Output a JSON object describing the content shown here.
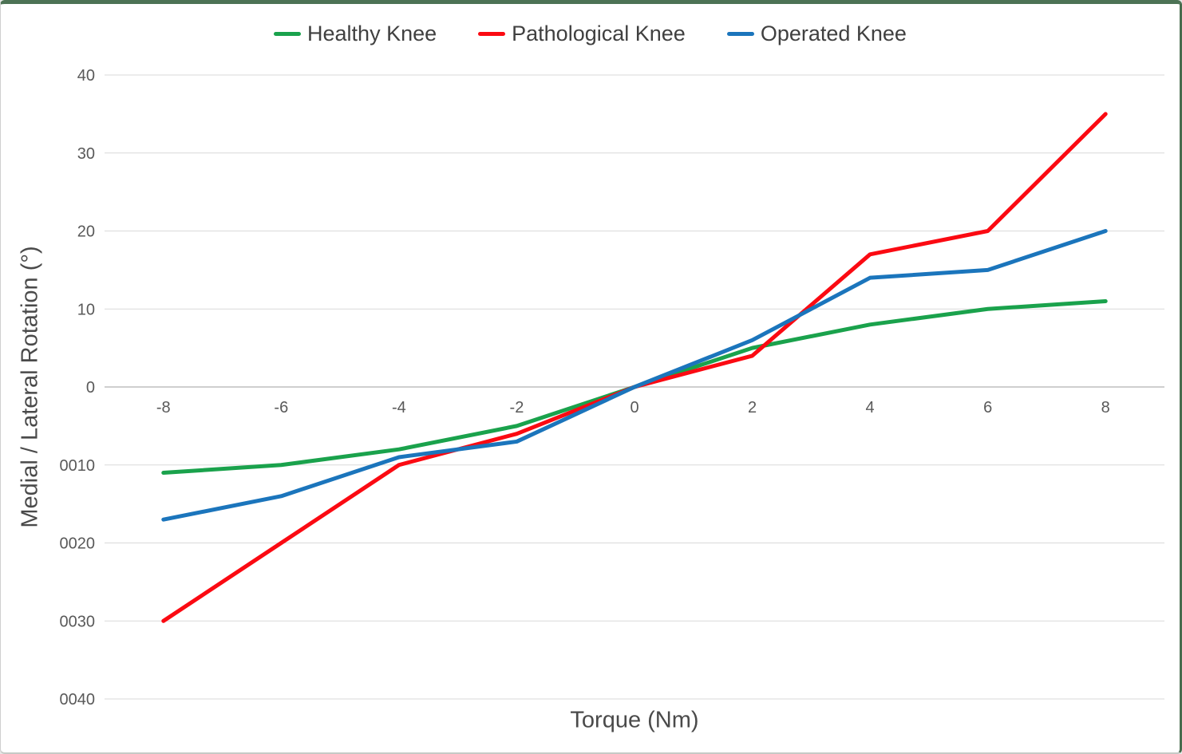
{
  "window": {
    "background": "#ffffff",
    "border_color": "#4d7355"
  },
  "legend": {
    "position": "top-center",
    "items": [
      {
        "label": "Healthy Knee",
        "color": "#1aa24c"
      },
      {
        "label": "Pathological Knee",
        "color": "#fb0a12"
      },
      {
        "label": "Operated Knee",
        "color": "#1b75bc"
      }
    ]
  },
  "chart_data": {
    "type": "line",
    "title": "",
    "xlabel": "Torque (Nm)",
    "ylabel": "Medial / Lateral Rotation (°)",
    "x": [
      -8,
      -6,
      -4,
      -2,
      0,
      2,
      4,
      6,
      8
    ],
    "series": [
      {
        "name": "Healthy Knee",
        "color": "#1aa24c",
        "values": [
          -11,
          -10,
          -8,
          -5,
          0,
          5,
          8,
          10,
          11
        ]
      },
      {
        "name": "Pathological Knee",
        "color": "#fb0a12",
        "values": [
          -30,
          -20,
          -10,
          -6,
          0,
          4,
          17,
          20,
          35
        ]
      },
      {
        "name": "Operated Knee",
        "color": "#1b75bc",
        "values": [
          -17,
          -14,
          -9,
          -7,
          0,
          6,
          14,
          15,
          20
        ]
      }
    ],
    "xlim": [
      -9,
      9
    ],
    "ylim": [
      -40,
      40
    ],
    "x_ticks": [
      {
        "value": -8,
        "label": "-8"
      },
      {
        "value": -6,
        "label": "-6"
      },
      {
        "value": -4,
        "label": "-4"
      },
      {
        "value": -2,
        "label": "-2"
      },
      {
        "value": 0,
        "label": "0"
      },
      {
        "value": 2,
        "label": "2"
      },
      {
        "value": 4,
        "label": "4"
      },
      {
        "value": 6,
        "label": "6"
      },
      {
        "value": 8,
        "label": "8"
      }
    ],
    "y_ticks": [
      {
        "value": 40,
        "label": "40"
      },
      {
        "value": 30,
        "label": "30"
      },
      {
        "value": 20,
        "label": "20"
      },
      {
        "value": 10,
        "label": "10"
      },
      {
        "value": 0,
        "label": "0"
      },
      {
        "value": -10,
        "label": "0010"
      },
      {
        "value": -20,
        "label": "0020"
      },
      {
        "value": -30,
        "label": "0030"
      },
      {
        "value": -40,
        "label": "0040"
      }
    ],
    "grid": "horizontal",
    "legend_position": "top",
    "line_width": 5,
    "colors": {
      "gridline": "#d9d9d9",
      "zero_line": "#bfbfbf",
      "tick_text": "#595959",
      "axis_title_text": "#4a4a4a",
      "legend_text": "#404040"
    }
  }
}
